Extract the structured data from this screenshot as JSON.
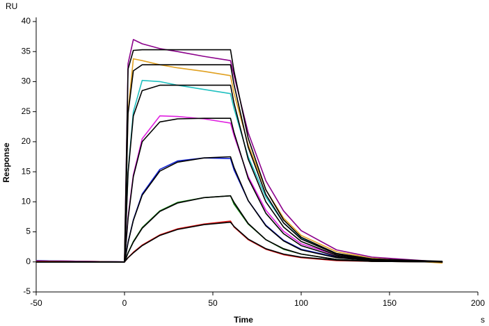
{
  "chart_data": {
    "type": "line",
    "y_unit": "RU",
    "x_unit": "s",
    "y_label": "Response",
    "x_label": "Time",
    "x": [
      -50,
      0,
      2,
      5,
      10,
      20,
      30,
      45,
      60,
      62,
      70,
      80,
      90,
      100,
      120,
      140,
      180
    ],
    "xlim": [
      -50,
      200
    ],
    "xticks": [
      -50,
      0,
      50,
      100,
      150,
      200
    ],
    "ylim": [
      -5,
      40
    ],
    "yticks": [
      -5,
      0,
      5,
      10,
      15,
      20,
      25,
      30,
      35,
      40
    ],
    "grid": false,
    "series": [
      {
        "color": "#8b008b",
        "values": [
          0.2,
          0,
          33,
          37,
          36.3,
          35.5,
          35,
          34.2,
          33.5,
          31,
          21.5,
          13.5,
          8.5,
          5.2,
          2,
          0.8,
          0
        ]
      },
      {
        "color": "#e0a020",
        "values": [
          0.1,
          0,
          25,
          33.8,
          33.5,
          32.8,
          32.3,
          31.7,
          31,
          28,
          19.5,
          12,
          7.3,
          4.4,
          1.7,
          0.6,
          -0.2
        ]
      },
      {
        "color": "#20c0c0",
        "values": [
          0.1,
          0,
          15,
          25,
          30.2,
          30,
          29.4,
          28.7,
          28,
          25.5,
          17.5,
          10.8,
          6.5,
          3.9,
          1.4,
          0.5,
          0
        ]
      },
      {
        "color": "#e020e0",
        "values": [
          0.2,
          0,
          7.5,
          14.5,
          20.5,
          24.3,
          24.2,
          23.8,
          23.1,
          21,
          14.2,
          8.6,
          5.1,
          3.0,
          1.1,
          0.4,
          0
        ]
      },
      {
        "color": "#1020d0",
        "values": [
          0.2,
          0,
          3.3,
          7,
          11.3,
          15.4,
          16.8,
          17.3,
          17.2,
          15.3,
          10.2,
          6.1,
          3.6,
          2.1,
          0.8,
          0.3,
          0
        ]
      },
      {
        "color": "#108010",
        "values": [
          0.1,
          0,
          1.5,
          3.4,
          5.7,
          8.5,
          9.9,
          10.7,
          11.0,
          9.6,
          6.3,
          3.7,
          2.1,
          1.3,
          0.4,
          0.1,
          0
        ]
      },
      {
        "color": "#e01010",
        "values": [
          0.1,
          0,
          0.7,
          1.6,
          2.8,
          4.5,
          5.5,
          6.3,
          6.8,
          5.8,
          3.7,
          2.1,
          1.2,
          0.7,
          0.2,
          0.1,
          0
        ]
      },
      {
        "color": "#000000",
        "values": [
          0,
          0,
          32.1,
          35.2,
          35.3,
          35.3,
          35.3,
          35.3,
          35.3,
          31.7,
          20.6,
          12.0,
          7.0,
          4.1,
          1.4,
          0.5,
          0.1
        ]
      },
      {
        "color": "#000000",
        "values": [
          0,
          0,
          24.7,
          31.8,
          32.8,
          32.8,
          32.8,
          32.8,
          32.8,
          29.5,
          19.1,
          11.2,
          6.5,
          3.8,
          1.3,
          0.4,
          0
        ]
      },
      {
        "color": "#000000",
        "values": [
          0,
          0,
          14.8,
          24.3,
          28.5,
          29.4,
          29.4,
          29.4,
          29.4,
          26.4,
          17.1,
          10.0,
          5.8,
          3.4,
          1.1,
          0.4,
          0
        ]
      },
      {
        "color": "#000000",
        "values": [
          0,
          0,
          7.2,
          14.2,
          20.0,
          23.3,
          23.8,
          23.9,
          23.9,
          21.5,
          13.9,
          8.1,
          4.7,
          2.7,
          0.9,
          0.3,
          0
        ]
      },
      {
        "color": "#000000",
        "values": [
          0,
          0,
          3.2,
          6.9,
          11.1,
          15.1,
          16.6,
          17.3,
          17.5,
          15.7,
          10.2,
          6.0,
          3.5,
          2.0,
          0.7,
          0.2,
          0
        ]
      },
      {
        "color": "#000000",
        "values": [
          0,
          0,
          1.5,
          3.3,
          5.6,
          8.4,
          9.8,
          10.7,
          11.0,
          9.9,
          6.4,
          3.7,
          2.2,
          1.3,
          0.4,
          0.1,
          0
        ]
      },
      {
        "color": "#000000",
        "values": [
          0,
          0,
          0.7,
          1.5,
          2.7,
          4.4,
          5.4,
          6.2,
          6.6,
          5.9,
          3.8,
          2.2,
          1.3,
          0.8,
          0.3,
          0.1,
          0
        ]
      }
    ]
  }
}
